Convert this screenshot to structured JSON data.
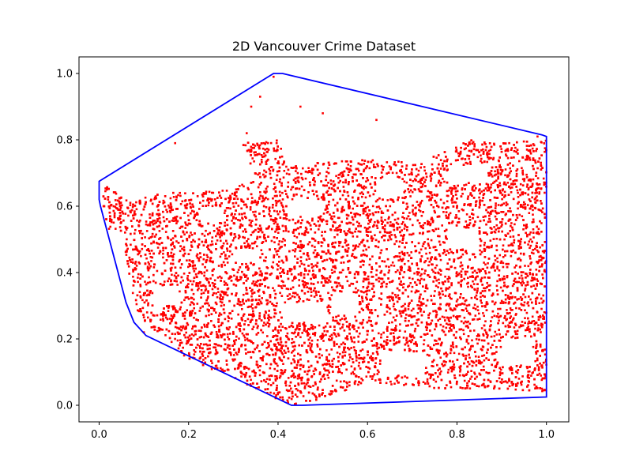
{
  "chart_data": {
    "type": "scatter",
    "title": "2D Vancouver Crime Dataset",
    "xlabel": "",
    "ylabel": "",
    "xlim": [
      -0.045,
      1.05
    ],
    "ylim": [
      -0.05,
      1.05
    ],
    "x_ticks": [
      0.0,
      0.2,
      0.4,
      0.6,
      0.8,
      1.0
    ],
    "x_tick_labels": [
      "0.0",
      "0.2",
      "0.4",
      "0.6",
      "0.8",
      "1.0"
    ],
    "y_ticks": [
      0.0,
      0.2,
      0.4,
      0.6,
      0.8,
      1.0
    ],
    "y_tick_labels": [
      "0.0",
      "0.2",
      "0.4",
      "0.6",
      "0.8",
      "1.0"
    ],
    "grid": false,
    "series": [
      {
        "kind": "points",
        "color": "#ff0000",
        "marker": "square",
        "note_shape_outline": [
          [
            0.0,
            0.67
          ],
          [
            0.07,
            0.62
          ],
          [
            0.15,
            0.64
          ],
          [
            0.3,
            0.65
          ],
          [
            0.35,
            0.69
          ],
          [
            0.32,
            0.79
          ],
          [
            0.4,
            0.8
          ],
          [
            0.42,
            0.72
          ],
          [
            0.55,
            0.74
          ],
          [
            0.6,
            0.74
          ],
          [
            0.72,
            0.73
          ],
          [
            0.82,
            0.8
          ],
          [
            0.9,
            0.79
          ],
          [
            1.0,
            0.8
          ],
          [
            1.0,
            0.04
          ],
          [
            0.9,
            0.05
          ],
          [
            0.75,
            0.05
          ],
          [
            0.6,
            0.07
          ],
          [
            0.5,
            0.02
          ],
          [
            0.43,
            0.0
          ],
          [
            0.33,
            0.06
          ],
          [
            0.2,
            0.14
          ],
          [
            0.1,
            0.25
          ],
          [
            0.08,
            0.3
          ],
          [
            0.06,
            0.45
          ],
          [
            0.05,
            0.52
          ],
          [
            0.02,
            0.52
          ]
        ]
      },
      {
        "kind": "hull",
        "color": "#0000ff",
        "points": [
          [
            0.0,
            0.675
          ],
          [
            0.39,
            1.0
          ],
          [
            0.41,
            1.0
          ],
          [
            0.99,
            0.815
          ],
          [
            1.0,
            0.81
          ],
          [
            1.0,
            0.025
          ],
          [
            0.455,
            0.0
          ],
          [
            0.43,
            0.0
          ],
          [
            0.105,
            0.21
          ],
          [
            0.078,
            0.25
          ],
          [
            0.06,
            0.31
          ],
          [
            0.003,
            0.6
          ],
          [
            0.0,
            0.62
          ]
        ]
      }
    ]
  }
}
